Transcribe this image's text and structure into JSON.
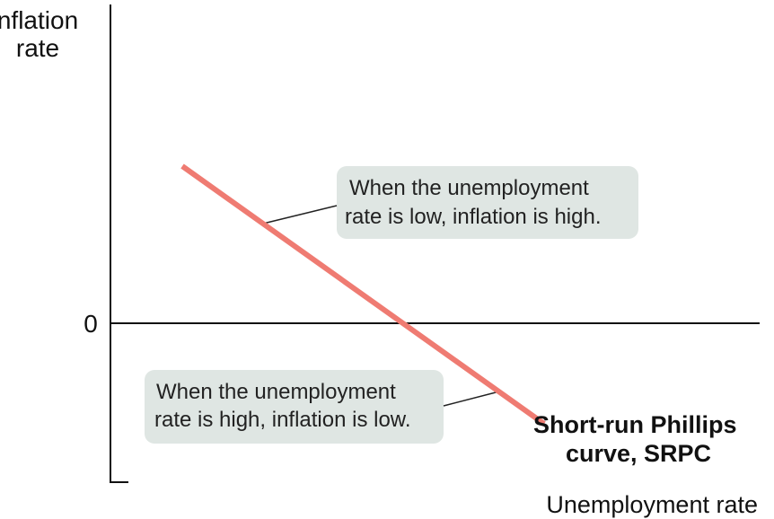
{
  "chart_data": {
    "type": "line",
    "title": "",
    "ylabel": [
      "Inflation",
      "rate"
    ],
    "xlabel": "Unemployment rate",
    "y_tick_labels": [
      "0"
    ],
    "series": [
      {
        "name": "Short-run Phillips curve, SRPC",
        "label_lines": [
          "Short-run Phillips",
          "curve, SRPC"
        ],
        "color": "#ef7b72"
      }
    ],
    "annotations": [
      {
        "lines": [
          "When the unemployment",
          "rate is low, inflation is high."
        ]
      },
      {
        "lines": [
          "When the unemployment",
          "rate is high, inflation is low."
        ]
      }
    ],
    "grid": false,
    "colors": {
      "axis": "#111111",
      "curve": "#ef7b72",
      "callout_bg": "#dfe6e3",
      "leader": "#222222"
    }
  }
}
